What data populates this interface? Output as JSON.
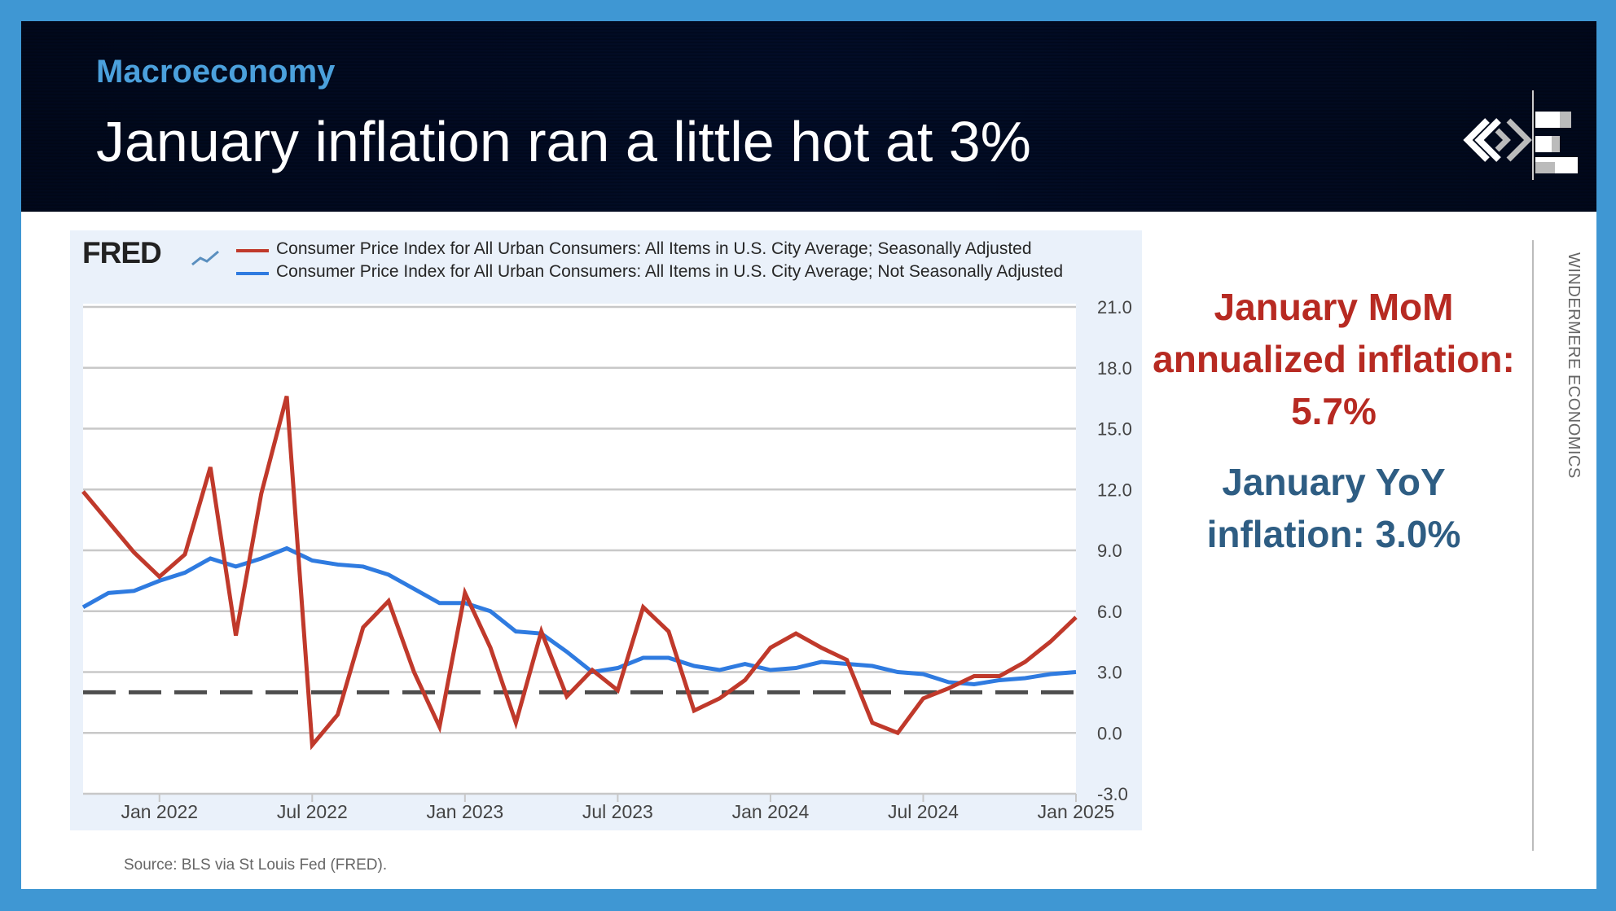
{
  "header": {
    "kicker": "Macroeconomy",
    "title": "January inflation ran a little hot at 3%"
  },
  "callouts": {
    "mom": "January MoM annualized inflation: 5.7%",
    "yoy": "January YoY inflation: 3.0%",
    "mom_color": "#b72a22",
    "yoy_color": "#2e5d83"
  },
  "brand_vertical": "WINDERMERE ECONOMICS",
  "source": "Source: BLS via St Louis Fed (FRED).",
  "logo": {
    "fred": "FRED"
  },
  "chart_data": {
    "type": "line",
    "title": "",
    "xlabel": "",
    "ylabel": "",
    "x": [
      "2021-10",
      "2021-11",
      "2021-12",
      "2022-01",
      "2022-02",
      "2022-03",
      "2022-04",
      "2022-05",
      "2022-06",
      "2022-07",
      "2022-08",
      "2022-09",
      "2022-10",
      "2022-11",
      "2022-12",
      "2023-01",
      "2023-02",
      "2023-03",
      "2023-04",
      "2023-05",
      "2023-06",
      "2023-07",
      "2023-08",
      "2023-09",
      "2023-10",
      "2023-11",
      "2023-12",
      "2024-01",
      "2024-02",
      "2024-03",
      "2024-04",
      "2024-05",
      "2024-06",
      "2024-07",
      "2024-08",
      "2024-09",
      "2024-10",
      "2024-11",
      "2024-12",
      "2025-01"
    ],
    "x_ticks": [
      "Jan 2022",
      "Jul 2022",
      "Jan 2023",
      "Jul 2023",
      "Jan 2024",
      "Jul 2024",
      "Jan 2025"
    ],
    "x_tick_dates": [
      "2022-01",
      "2022-07",
      "2023-01",
      "2023-07",
      "2024-01",
      "2024-07",
      "2025-01"
    ],
    "ylim": [
      -3,
      21
    ],
    "y_ticks": [
      "21.0",
      "18.0",
      "15.0",
      "12.0",
      "9.0",
      "6.0",
      "3.0",
      "0.0",
      "-3.0"
    ],
    "grid": true,
    "legend": "top",
    "reference_line": {
      "y": 2.0,
      "style": "dashed",
      "color": "#4d4d4d"
    },
    "series": [
      {
        "name": "Consumer Price Index for All Urban Consumers: All Items in U.S. City Average; Seasonally Adjusted",
        "color": "#c0392b",
        "values": [
          11.9,
          10.4,
          8.9,
          7.7,
          8.8,
          13.1,
          4.8,
          11.8,
          16.6,
          -0.6,
          0.9,
          5.2,
          6.5,
          3.0,
          0.3,
          6.9,
          4.2,
          0.5,
          5.0,
          1.8,
          3.1,
          2.1,
          6.2,
          5.0,
          1.1,
          1.7,
          2.6,
          4.2,
          4.9,
          4.2,
          3.6,
          0.5,
          0.0,
          1.7,
          2.2,
          2.8,
          2.8,
          3.5,
          4.5,
          5.7
        ]
      },
      {
        "name": "Consumer Price Index for All Urban Consumers: All Items in U.S. City Average; Not Seasonally Adjusted",
        "color": "#2f7be0",
        "values": [
          6.2,
          6.9,
          7.0,
          7.5,
          7.9,
          8.6,
          8.2,
          8.6,
          9.1,
          8.5,
          8.3,
          8.2,
          7.8,
          7.1,
          6.4,
          6.4,
          6.0,
          5.0,
          4.9,
          4.0,
          3.0,
          3.2,
          3.7,
          3.7,
          3.3,
          3.1,
          3.4,
          3.1,
          3.2,
          3.5,
          3.4,
          3.3,
          3.0,
          2.9,
          2.5,
          2.4,
          2.6,
          2.7,
          2.9,
          3.0
        ]
      }
    ]
  }
}
